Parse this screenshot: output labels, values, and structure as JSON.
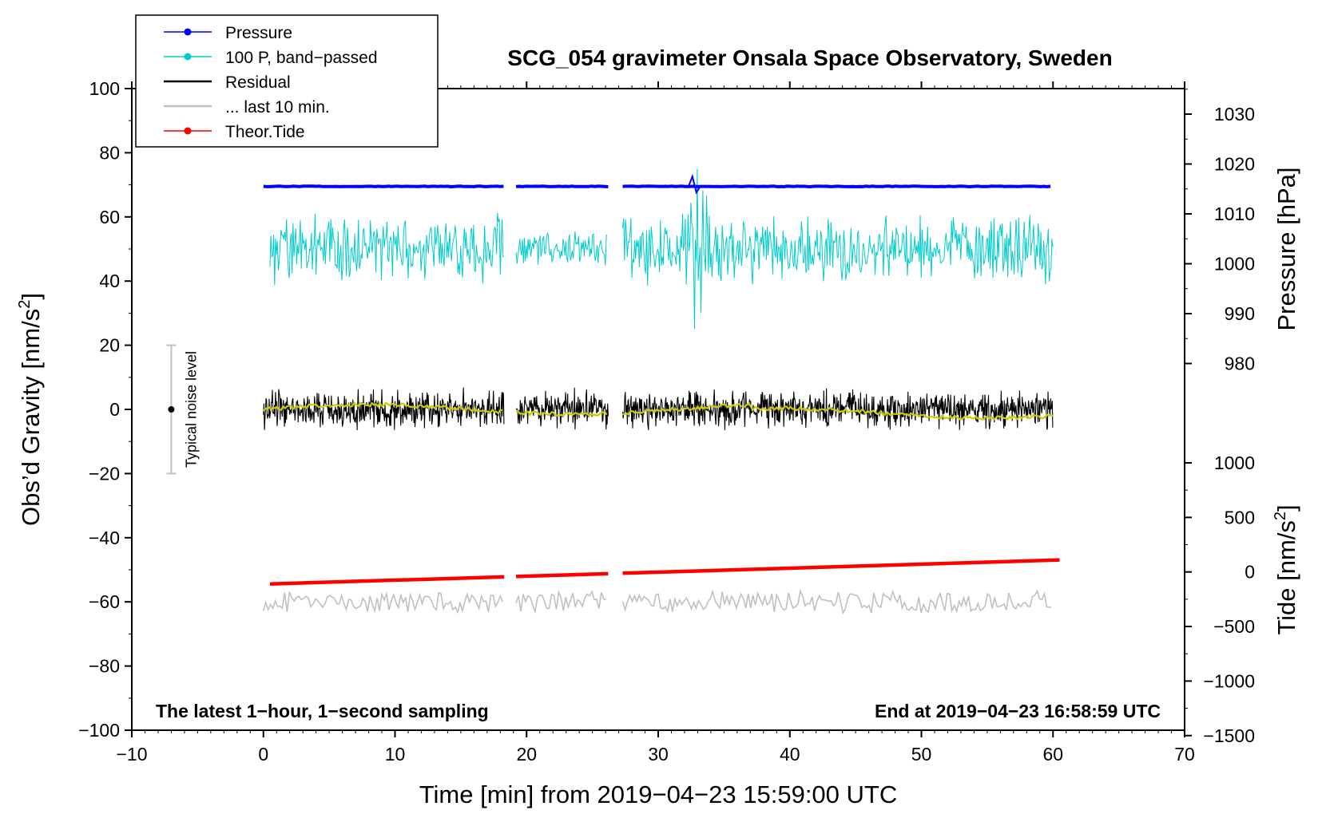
{
  "chart_data": {
    "type": "line",
    "title": "SCG_054 gravimeter Onsala Space Observatory, Sweden",
    "xlabel": "Time [min] from 2019−04−23 15:59:00 UTC",
    "ylabel_left": "Obs’d Gravity [nm/s",
    "ylabel_left_sup": "2",
    "ylabel_left_end": "]",
    "ylabel_right_top": "Pressure [hPa]",
    "ylabel_right_bottom": "Tide [nm/s",
    "ylabel_right_bottom_sup": "2",
    "ylabel_right_bottom_end": "]",
    "xlim": [
      -10,
      70
    ],
    "ylim_left": [
      -100,
      100
    ],
    "xticks": [
      -10,
      0,
      10,
      20,
      30,
      40,
      50,
      60,
      70
    ],
    "xtick_labels": [
      "−10",
      "0",
      "10",
      "20",
      "30",
      "40",
      "50",
      "60",
      "70"
    ],
    "yticks_left": [
      100,
      80,
      60,
      40,
      20,
      0,
      -20,
      -40,
      -60,
      -80,
      -100
    ],
    "ytick_left_labels": [
      "100",
      "80",
      "60",
      "40",
      "20",
      "0",
      "−20",
      "−40",
      "−60",
      "−80",
      "−100"
    ],
    "pressure_ticks": [
      1030,
      1020,
      1010,
      1000,
      990,
      980
    ],
    "pressure_tick_labels": [
      "1030",
      "1020",
      "1010",
      "1000",
      "990",
      "980"
    ],
    "tide_ticks": [
      1000,
      500,
      0,
      -500,
      -1000,
      -1500
    ],
    "tide_tick_labels": [
      "1000",
      "500",
      "0",
      "−500",
      "−1000",
      "−1500"
    ],
    "data_gaps_min": [
      [
        18.3,
        19.2
      ],
      [
        26.2,
        27.3
      ]
    ],
    "series": [
      {
        "name": "Pressure",
        "axis": "pressure",
        "color": "#0000ff",
        "level_hpa": 1015.5,
        "x_range": [
          0,
          60
        ]
      },
      {
        "name": "100 P, band−passed",
        "axis": "gravity",
        "color": "#00cccc",
        "offset": 50,
        "amplitude_approx": 10,
        "x_range": [
          0.5,
          60
        ]
      },
      {
        "name": "Residual",
        "axis": "gravity",
        "color": "#000000",
        "offset": 0,
        "amplitude_approx": 6,
        "x_range": [
          0,
          60
        ]
      },
      {
        "name": "Residual smoothed",
        "axis": "gravity",
        "color": "#cccc00",
        "offset": 0,
        "x_range": [
          0,
          60
        ]
      },
      {
        "name": "... last 10 min.",
        "axis": "gravity",
        "color": "#c0c0c0",
        "offset": -60,
        "amplitude_approx": 3,
        "x_range": [
          0,
          60
        ]
      },
      {
        "name": "Theor.Tide",
        "axis": "tide",
        "color": "#ff0000",
        "start_value": -110,
        "end_value": 110,
        "x_range": [
          0.5,
          60.5
        ]
      }
    ],
    "legend": [
      {
        "label": "Pressure",
        "color": "#0000ff",
        "marker": true
      },
      {
        "label": "100 P, band−passed",
        "color": "#00cccc",
        "marker": true
      },
      {
        "label": "Residual",
        "color": "#000000",
        "marker": false
      },
      {
        "label": "... last 10 min.",
        "color": "#c0c0c0",
        "marker": false
      },
      {
        "label": "Theor.Tide",
        "color": "#ff0000",
        "marker": true
      }
    ],
    "noise_bar": {
      "label": "Typical noise level",
      "x": -7,
      "center": 0,
      "half_range": 20
    },
    "annotation_left": "The latest 1−hour, 1−second sampling",
    "annotation_right": "End at 2019−04−23 16:58:59 UTC"
  }
}
